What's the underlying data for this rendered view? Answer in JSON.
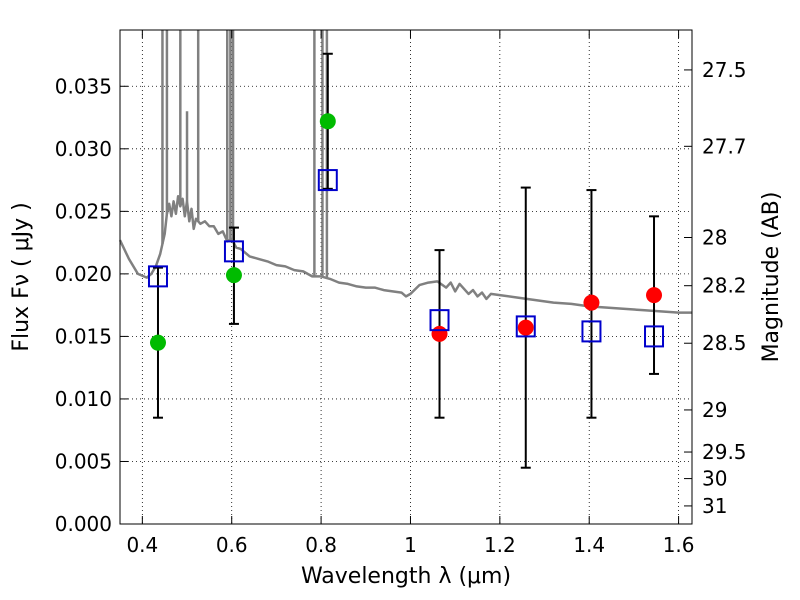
{
  "chart_data": {
    "type": "scatter",
    "xlabel": "Wavelength  λ (μm)",
    "ylabel": "Flux  Fν  ( μJy )",
    "y2label": "Magnitude (AB)",
    "xlim": [
      0.35,
      1.63
    ],
    "ylim": [
      0.0,
      0.0395
    ],
    "grid": true,
    "x_ticks": [
      {
        "value": 0.4,
        "label": "0.4"
      },
      {
        "value": 0.6,
        "label": "0.6"
      },
      {
        "value": 0.8,
        "label": "0.8"
      },
      {
        "value": 1.0,
        "label": "1"
      },
      {
        "value": 1.2,
        "label": "1.2"
      },
      {
        "value": 1.4,
        "label": "1.4"
      },
      {
        "value": 1.6,
        "label": "1.6"
      }
    ],
    "y_ticks": [
      {
        "value": 0.0,
        "label": "0.000"
      },
      {
        "value": 0.005,
        "label": "0.005"
      },
      {
        "value": 0.01,
        "label": "0.010"
      },
      {
        "value": 0.015,
        "label": "0.015"
      },
      {
        "value": 0.02,
        "label": "0.020"
      },
      {
        "value": 0.025,
        "label": "0.025"
      },
      {
        "value": 0.03,
        "label": "0.030"
      },
      {
        "value": 0.035,
        "label": "0.035"
      }
    ],
    "y2_ticks": [
      {
        "mag": 27.5,
        "label": "27.5"
      },
      {
        "mag": 27.7,
        "label": "27.7"
      },
      {
        "mag": 28.0,
        "label": "28"
      },
      {
        "mag": 28.2,
        "label": "28.2"
      },
      {
        "mag": 28.5,
        "label": "28.5"
      },
      {
        "mag": 29.0,
        "label": "29"
      },
      {
        "mag": 29.5,
        "label": "29.5"
      },
      {
        "mag": 30.0,
        "label": "30"
      },
      {
        "mag": 31.0,
        "label": "31"
      }
    ],
    "model_spectrum": {
      "color": "#808080",
      "points": [
        [
          0.35,
          0.0227
        ],
        [
          0.37,
          0.0212
        ],
        [
          0.39,
          0.02
        ],
        [
          0.41,
          0.0197
        ],
        [
          0.42,
          0.02
        ],
        [
          0.43,
          0.0206
        ],
        [
          0.44,
          0.0216
        ],
        [
          0.45,
          0.0232
        ],
        [
          0.455,
          0.0248
        ],
        [
          0.46,
          0.0256
        ],
        [
          0.465,
          0.0246
        ],
        [
          0.47,
          0.0258
        ],
        [
          0.475,
          0.0248
        ],
        [
          0.48,
          0.0262
        ],
        [
          0.485,
          0.0254
        ],
        [
          0.49,
          0.026
        ],
        [
          0.495,
          0.0246
        ],
        [
          0.5,
          0.0258
        ],
        [
          0.505,
          0.0242
        ],
        [
          0.51,
          0.0252
        ],
        [
          0.515,
          0.0236
        ],
        [
          0.52,
          0.0244
        ],
        [
          0.53,
          0.024
        ],
        [
          0.54,
          0.0242
        ],
        [
          0.55,
          0.0238
        ],
        [
          0.56,
          0.0238
        ],
        [
          0.57,
          0.0232
        ],
        [
          0.58,
          0.0234
        ],
        [
          0.59,
          0.0226
        ],
        [
          0.6,
          0.0228
        ],
        [
          0.61,
          0.0221
        ],
        [
          0.62,
          0.022
        ],
        [
          0.64,
          0.0214
        ],
        [
          0.66,
          0.0212
        ],
        [
          0.68,
          0.021
        ],
        [
          0.7,
          0.0207
        ],
        [
          0.72,
          0.0206
        ],
        [
          0.74,
          0.0203
        ],
        [
          0.76,
          0.0202
        ],
        [
          0.78,
          0.0198
        ],
        [
          0.8,
          0.0198
        ],
        [
          0.82,
          0.0196
        ],
        [
          0.84,
          0.0193
        ],
        [
          0.86,
          0.0192
        ],
        [
          0.88,
          0.019
        ],
        [
          0.9,
          0.0189
        ],
        [
          0.92,
          0.0189
        ],
        [
          0.94,
          0.0187
        ],
        [
          0.96,
          0.0186
        ],
        [
          0.98,
          0.0185
        ],
        [
          0.99,
          0.0182
        ],
        [
          1.0,
          0.0184
        ],
        [
          1.02,
          0.0191
        ],
        [
          1.04,
          0.0193
        ],
        [
          1.06,
          0.0194
        ],
        [
          1.08,
          0.0189
        ],
        [
          1.09,
          0.0193
        ],
        [
          1.1,
          0.0186
        ],
        [
          1.11,
          0.0192
        ],
        [
          1.12,
          0.0188
        ],
        [
          1.13,
          0.0184
        ],
        [
          1.14,
          0.0187
        ],
        [
          1.15,
          0.0182
        ],
        [
          1.16,
          0.0185
        ],
        [
          1.17,
          0.018
        ],
        [
          1.18,
          0.0184
        ],
        [
          1.2,
          0.0183
        ],
        [
          1.24,
          0.0181
        ],
        [
          1.28,
          0.0179
        ],
        [
          1.32,
          0.0177
        ],
        [
          1.36,
          0.0176
        ],
        [
          1.4,
          0.0174
        ],
        [
          1.44,
          0.0173
        ],
        [
          1.48,
          0.0172
        ],
        [
          1.52,
          0.0171
        ],
        [
          1.56,
          0.017
        ],
        [
          1.6,
          0.0169
        ],
        [
          1.63,
          0.0169
        ]
      ],
      "emission_lines": [
        {
          "x": 0.445,
          "peak": 0.0395
        },
        {
          "x": 0.455,
          "peak": 0.0395
        },
        {
          "x": 0.485,
          "peak": 0.0395
        },
        {
          "x": 0.5,
          "peak": 0.033
        },
        {
          "x": 0.525,
          "peak": 0.0395
        },
        {
          "x": 0.59,
          "peak": 0.0395
        },
        {
          "x": 0.597,
          "peak": 0.0395
        },
        {
          "x": 0.603,
          "peak": 0.0395
        },
        {
          "x": 0.785,
          "peak": 0.0395
        },
        {
          "x": 0.803,
          "peak": 0.0395
        },
        {
          "x": 0.813,
          "peak": 0.0395
        }
      ]
    },
    "series": [
      {
        "marker": "circle",
        "color": "#00bb00",
        "points": [
          {
            "x": 0.435,
            "y": 0.0145
          },
          {
            "x": 0.605,
            "y": 0.0199
          },
          {
            "x": 0.815,
            "y": 0.0322
          }
        ]
      },
      {
        "marker": "circle",
        "color": "#ff0000",
        "points": [
          {
            "x": 1.065,
            "y": 0.0152
          },
          {
            "x": 1.258,
            "y": 0.0157
          },
          {
            "x": 1.405,
            "y": 0.0177
          },
          {
            "x": 1.545,
            "y": 0.0183
          }
        ]
      },
      {
        "marker": "open-square",
        "color": "#0000cc",
        "points": [
          {
            "x": 0.435,
            "y": 0.0198
          },
          {
            "x": 0.605,
            "y": 0.0218
          },
          {
            "x": 0.815,
            "y": 0.0275
          },
          {
            "x": 1.065,
            "y": 0.0163
          },
          {
            "x": 1.258,
            "y": 0.0158
          },
          {
            "x": 1.405,
            "y": 0.0154
          },
          {
            "x": 1.545,
            "y": 0.015
          }
        ]
      }
    ],
    "error_bars": [
      {
        "x": 0.435,
        "low": 0.0085,
        "high": 0.0205
      },
      {
        "x": 0.605,
        "low": 0.016,
        "high": 0.0237
      },
      {
        "x": 0.815,
        "low": 0.0268,
        "high": 0.0376
      },
      {
        "x": 1.065,
        "low": 0.0085,
        "high": 0.0219
      },
      {
        "x": 1.258,
        "low": 0.0045,
        "high": 0.0269
      },
      {
        "x": 1.405,
        "low": 0.0085,
        "high": 0.0267
      },
      {
        "x": 1.545,
        "low": 0.012,
        "high": 0.0246
      }
    ]
  }
}
